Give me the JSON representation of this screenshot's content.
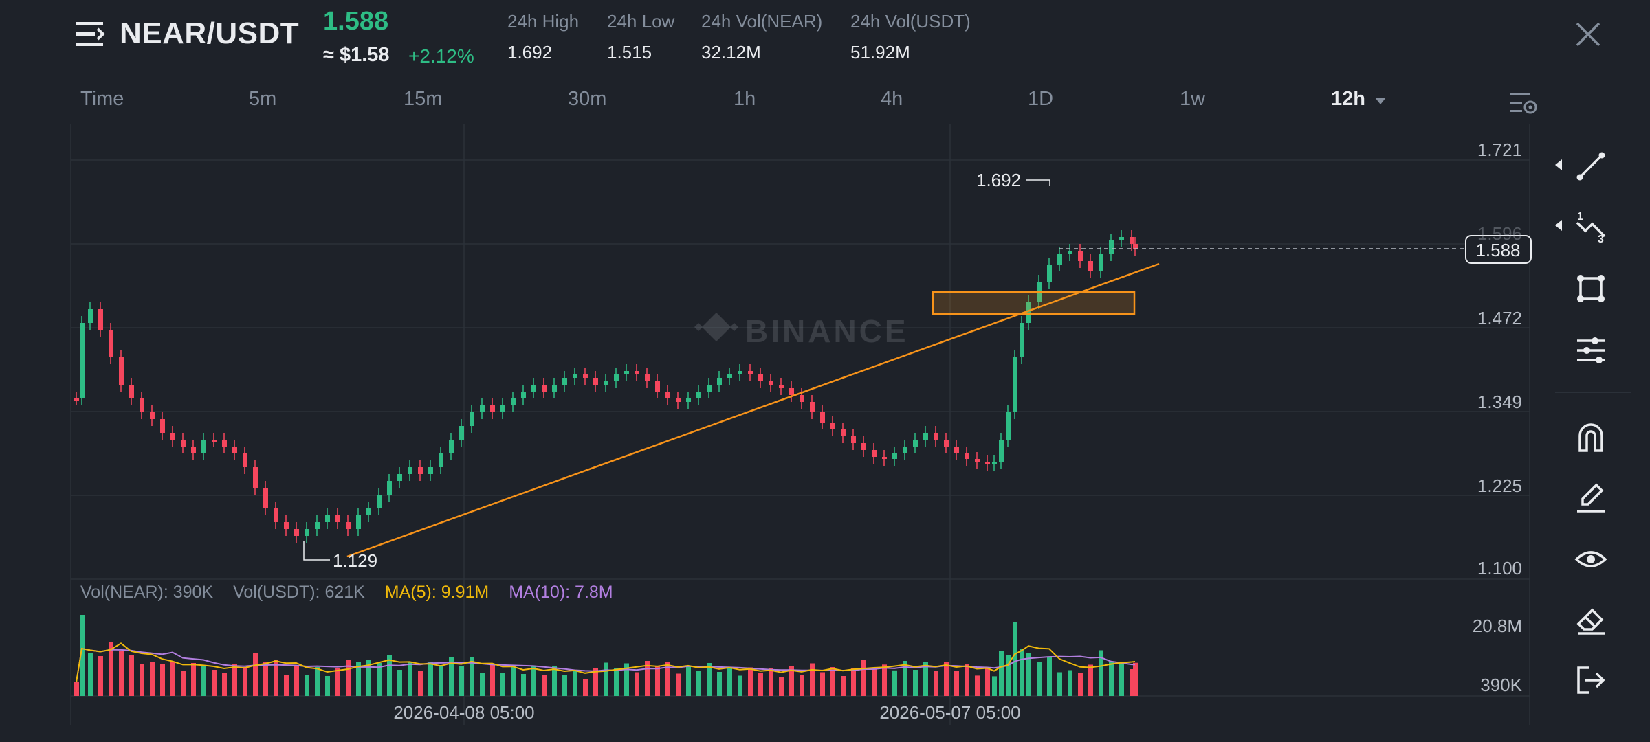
{
  "header": {
    "pair": "NEAR/USDT",
    "price": "1.588",
    "usd_price": "≈ $1.58",
    "change": "+2.12%",
    "stats": [
      {
        "label": "24h High",
        "value": "1.692"
      },
      {
        "label": "24h Low",
        "value": "1.515"
      },
      {
        "label": "24h Vol(NEAR)",
        "value": "32.12M"
      },
      {
        "label": "24h Vol(USDT)",
        "value": "51.92M"
      }
    ]
  },
  "timeframes": [
    "Time",
    "5m",
    "15m",
    "30m",
    "1h",
    "4h",
    "1D",
    "1w",
    "12h"
  ],
  "active_timeframe": "12h",
  "chart": {
    "watermark": "BINANCE",
    "price_axis": [
      "1.721",
      "1.596",
      "1.472",
      "1.349",
      "1.225",
      "1.100"
    ],
    "current_price_tag": "1.588",
    "high_marker": "1.692",
    "low_marker": "1.129",
    "volume_axis": [
      "20.8M",
      "390K"
    ],
    "date_labels": [
      "2026-04-08 05:00",
      "2026-05-07 05:00"
    ],
    "vol_legend": {
      "vol_near": "Vol(NEAR): 390K",
      "vol_usdt": "Vol(USDT): 621K",
      "ma5": "MA(5): 9.91M",
      "ma10": "MA(10): 7.8M"
    }
  },
  "colors": {
    "background": "#1e2229",
    "up": "#2ebd85",
    "down": "#f6465d",
    "ma5": "#f0b90b",
    "ma10": "#b27fe0",
    "drawing": "#f7931a"
  },
  "toolbar": [
    "trendline-icon",
    "fib-icon",
    "rectangle-icon",
    "indicator-lines-icon",
    "magnet-icon",
    "pencil-icon",
    "eye-icon",
    "eraser-icon",
    "exit-icon"
  ]
}
